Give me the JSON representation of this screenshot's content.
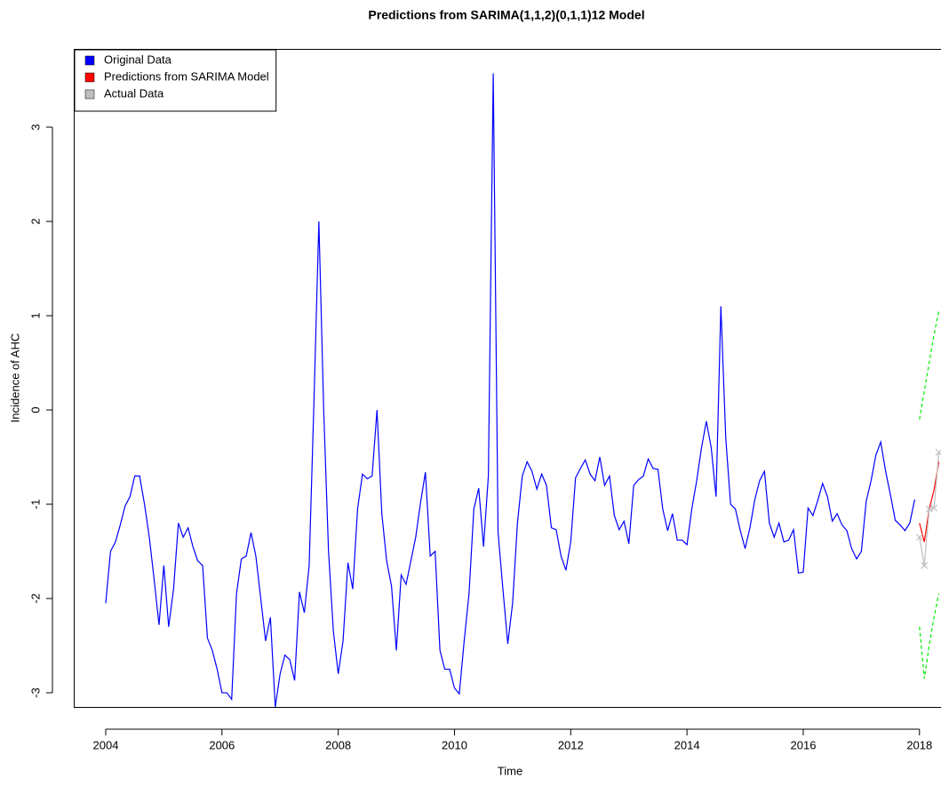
{
  "chart_data": {
    "type": "line",
    "title": "Predictions from SARIMA(1,1,2)(0,1,1)12 Model",
    "x_label": "Time",
    "y_label": "Incidence of AHC",
    "legend": "topleft",
    "xlim": [
      2003.45,
      2018.37
    ],
    "ylim": [
      -3.16,
      3.83
    ],
    "xticks": [
      2004,
      2006,
      2008,
      2010,
      2012,
      2014,
      2016,
      2018
    ],
    "yticks": [
      -3,
      -2,
      -1,
      0,
      1,
      2,
      3
    ],
    "series": [
      {
        "name": "Original Data",
        "color": "#0000ff",
        "x": [
          2004,
          2004.083,
          2004.167,
          2004.25,
          2004.333,
          2004.417,
          2004.5,
          2004.583,
          2004.667,
          2004.75,
          2004.833,
          2004.917,
          2005,
          2005.083,
          2005.167,
          2005.25,
          2005.333,
          2005.417,
          2005.5,
          2005.583,
          2005.667,
          2005.75,
          2005.833,
          2005.917,
          2006,
          2006.083,
          2006.167,
          2006.25,
          2006.333,
          2006.417,
          2006.5,
          2006.583,
          2006.667,
          2006.75,
          2006.833,
          2006.917,
          2007,
          2007.083,
          2007.167,
          2007.25,
          2007.333,
          2007.417,
          2007.5,
          2007.583,
          2007.667,
          2007.75,
          2007.833,
          2007.917,
          2008,
          2008.083,
          2008.167,
          2008.25,
          2008.333,
          2008.417,
          2008.5,
          2008.583,
          2008.667,
          2008.75,
          2008.833,
          2008.917,
          2009,
          2009.083,
          2009.167,
          2009.25,
          2009.333,
          2009.417,
          2009.5,
          2009.583,
          2009.667,
          2009.75,
          2009.833,
          2009.917,
          2010,
          2010.083,
          2010.167,
          2010.25,
          2010.333,
          2010.417,
          2010.5,
          2010.583,
          2010.667,
          2010.75,
          2010.833,
          2010.917,
          2011,
          2011.083,
          2011.167,
          2011.25,
          2011.333,
          2011.417,
          2011.5,
          2011.583,
          2011.667,
          2011.75,
          2011.833,
          2011.917,
          2012,
          2012.083,
          2012.167,
          2012.25,
          2012.333,
          2012.417,
          2012.5,
          2012.583,
          2012.667,
          2012.75,
          2012.833,
          2012.917,
          2013,
          2013.083,
          2013.167,
          2013.25,
          2013.333,
          2013.417,
          2013.5,
          2013.583,
          2013.667,
          2013.75,
          2013.833,
          2013.917,
          2014,
          2014.083,
          2014.167,
          2014.25,
          2014.333,
          2014.417,
          2014.5,
          2014.583,
          2014.667,
          2014.75,
          2014.833,
          2014.917,
          2015,
          2015.083,
          2015.167,
          2015.25,
          2015.333,
          2015.417,
          2015.5,
          2015.583,
          2015.667,
          2015.75,
          2015.833,
          2015.917,
          2016,
          2016.083,
          2016.167,
          2016.25,
          2016.333,
          2016.417,
          2016.5,
          2016.583,
          2016.667,
          2016.75,
          2016.833,
          2016.917,
          2017,
          2017.083,
          2017.167,
          2017.25,
          2017.333,
          2017.417,
          2017.5,
          2017.583,
          2017.667,
          2017.75,
          2017.833,
          2017.917
        ],
        "values": [
          -2.05,
          -1.5,
          -1.4,
          -1.22,
          -1.02,
          -0.92,
          -0.7,
          -0.7,
          -1.0,
          -1.35,
          -1.8,
          -2.28,
          -1.65,
          -2.3,
          -1.9,
          -1.2,
          -1.35,
          -1.25,
          -1.45,
          -1.6,
          -1.65,
          -2.42,
          -2.55,
          -2.75,
          -3.0,
          -3.0,
          -3.07,
          -1.95,
          -1.58,
          -1.55,
          -1.3,
          -1.55,
          -2.0,
          -2.45,
          -2.2,
          -3.15,
          -2.8,
          -2.6,
          -2.65,
          -2.87,
          -1.93,
          -2.15,
          -1.65,
          0.1,
          2.0,
          0.0,
          -1.5,
          -2.35,
          -2.8,
          -2.45,
          -1.62,
          -1.9,
          -1.05,
          -0.68,
          -0.73,
          -0.7,
          0.0,
          -1.1,
          -1.6,
          -1.87,
          -2.55,
          -1.75,
          -1.85,
          -1.6,
          -1.35,
          -0.98,
          -0.66,
          -1.55,
          -1.5,
          -2.55,
          -2.75,
          -2.75,
          -2.95,
          -3.01,
          -2.45,
          -1.95,
          -1.05,
          -0.83,
          -1.45,
          -0.7,
          3.57,
          -1.3,
          -1.9,
          -2.48,
          -2.05,
          -1.2,
          -0.7,
          -0.55,
          -0.65,
          -0.84,
          -0.68,
          -0.8,
          -1.25,
          -1.27,
          -1.55,
          -1.7,
          -1.4,
          -0.72,
          -0.62,
          -0.53,
          -0.68,
          -0.75,
          -0.5,
          -0.8,
          -0.7,
          -1.12,
          -1.27,
          -1.18,
          -1.42,
          -0.8,
          -0.74,
          -0.7,
          -0.52,
          -0.62,
          -0.63,
          -1.05,
          -1.28,
          -1.1,
          -1.38,
          -1.38,
          -1.43,
          -1.05,
          -0.75,
          -0.4,
          -0.12,
          -0.4,
          -0.92,
          1.1,
          -0.3,
          -1.0,
          -1.05,
          -1.28,
          -1.47,
          -1.25,
          -0.95,
          -0.75,
          -0.65,
          -1.2,
          -1.35,
          -1.2,
          -1.4,
          -1.38,
          -1.27,
          -1.73,
          -1.72,
          -1.04,
          -1.12,
          -0.96,
          -0.78,
          -0.92,
          -1.18,
          -1.1,
          -1.22,
          -1.28,
          -1.47,
          -1.58,
          -1.5,
          -0.97,
          -0.75,
          -0.48,
          -0.34,
          -0.65,
          -0.9,
          -1.17,
          -1.22,
          -1.28,
          -1.2,
          -0.95
        ]
      },
      {
        "name": "Predictions from SARIMA Model",
        "color": "#ff0000",
        "x": [
          2018,
          2018.083,
          2018.167,
          2018.25,
          2018.333
        ],
        "values": [
          -1.2,
          -1.4,
          -1.05,
          -0.85,
          -0.55
        ]
      },
      {
        "name": "Actual Data",
        "color": "#bebebe",
        "marker": "x",
        "x": [
          2018,
          2018.083,
          2018.167,
          2018.25,
          2018.333
        ],
        "values": [
          -1.35,
          -1.65,
          -1.05,
          -1.04,
          -0.45
        ]
      },
      {
        "color": "#00ee00",
        "dash": true,
        "x": [
          2018,
          2018.083,
          2018.167,
          2018.25,
          2018.333
        ],
        "values": [
          -0.1,
          0.2,
          0.5,
          0.8,
          1.05
        ]
      },
      {
        "color": "#00ee00",
        "dash": true,
        "x": [
          2018,
          2018.083,
          2018.167,
          2018.25,
          2018.333
        ],
        "values": [
          -2.3,
          -2.85,
          -2.5,
          -2.2,
          -1.95
        ]
      }
    ]
  }
}
